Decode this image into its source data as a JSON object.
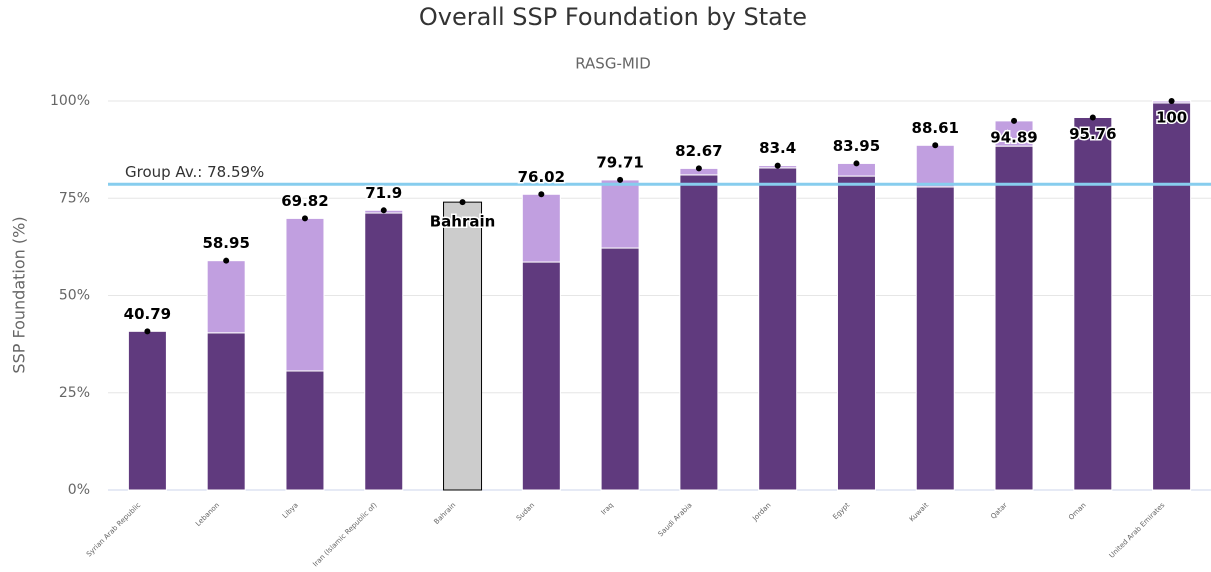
{
  "chart_data": {
    "type": "stacked_bar",
    "title": "Overall SSP Foundation by State",
    "subtitle": "RASG-MID",
    "y_label": "SSP Foundation (%)",
    "categories": [
      "Syrian Arab Republic",
      "Lebanon",
      "Libya",
      "Iran (Islamic Republic of)",
      "Bahrain",
      "Sudan",
      "Iraq",
      "Saudi Arabia",
      "Jordan",
      "Egypt",
      "Kuwait",
      "Qatar",
      "Oman",
      "United Arab Emirates"
    ],
    "series": [
      {
        "color": "#603a7e",
        "values": [
          40.79,
          40.4,
          30.6,
          71.2,
          null,
          58.6,
          62.2,
          81.0,
          82.8,
          80.7,
          77.9,
          88.4,
          95.76,
          99.5
        ]
      },
      {
        "color": "#c19fe0",
        "values": [
          0,
          18.55,
          39.22,
          0.7,
          null,
          17.42,
          17.51,
          1.67,
          0.6,
          3.25,
          10.71,
          6.49,
          0,
          0.5
        ]
      },
      {
        "color": "#cccccc",
        "values": [
          null,
          null,
          null,
          null,
          74,
          null,
          null,
          null,
          null,
          null,
          null,
          null,
          null,
          null
        ]
      }
    ],
    "totals": [
      40.79,
      58.95,
      69.82,
      71.9,
      74,
      76.02,
      79.71,
      82.67,
      83.4,
      83.95,
      88.61,
      94.89,
      95.76,
      100
    ],
    "average": 78.59,
    "average_label": "Group Av.: 78.59%",
    "average_color": "#87cdee",
    "ylim": [
      0,
      100
    ],
    "yticks": [
      {
        "value": 0,
        "label": "0%"
      },
      {
        "value": 25,
        "label": "25%"
      },
      {
        "value": 50,
        "label": "50%"
      },
      {
        "value": 75,
        "label": "75%"
      },
      {
        "value": 100,
        "label": "100%"
      }
    ],
    "grid": true
  }
}
